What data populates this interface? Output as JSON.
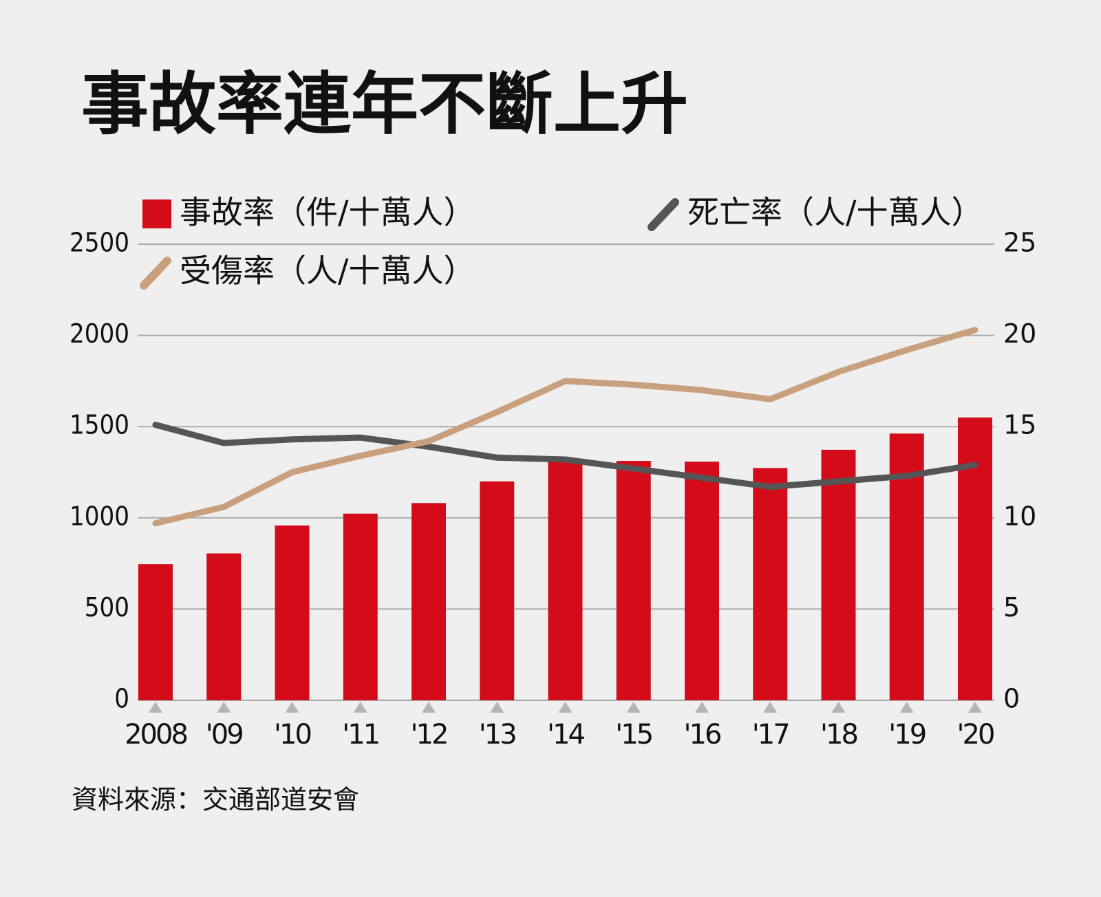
{
  "chart_data": {
    "type": "bar",
    "title": "事故率連年不斷上升",
    "categories": [
      "2008",
      "'09",
      "'10",
      "'11",
      "'12",
      "'13",
      "'14",
      "'15",
      "'16",
      "'17",
      "'18",
      "'19",
      "'20"
    ],
    "series": [
      {
        "name": "事故率（件/十萬人）",
        "type": "bar",
        "color": "#d40c19",
        "values": [
          746,
          805,
          958,
          1023,
          1081,
          1200,
          1319,
          1312,
          1308,
          1273,
          1373,
          1462,
          1550
        ]
      },
      {
        "name": "死亡率（人/十萬人）",
        "type": "line",
        "axis": "y2",
        "color": "#555555",
        "values": [
          15.1,
          14.1,
          14.3,
          14.4,
          13.9,
          13.3,
          13.2,
          12.7,
          12.2,
          11.7,
          12.0,
          12.3,
          12.9
        ]
      },
      {
        "name": "受傷率（人/十萬人）",
        "type": "line",
        "axis": "y2",
        "color": "#c9a07e",
        "values": [
          9.7,
          10.6,
          12.5,
          13.4,
          14.2,
          15.8,
          17.5,
          17.3,
          17.0,
          16.5,
          18.0,
          19.2,
          20.3
        ]
      }
    ],
    "ylim": [
      0,
      2500
    ],
    "yticks": [
      0,
      500,
      1000,
      1500,
      2000,
      2500
    ],
    "y2lim": [
      0,
      25
    ],
    "y2ticks": [
      0,
      5,
      10,
      15,
      20,
      25
    ],
    "grid": true,
    "source": "資料來源：交通部道安會"
  }
}
